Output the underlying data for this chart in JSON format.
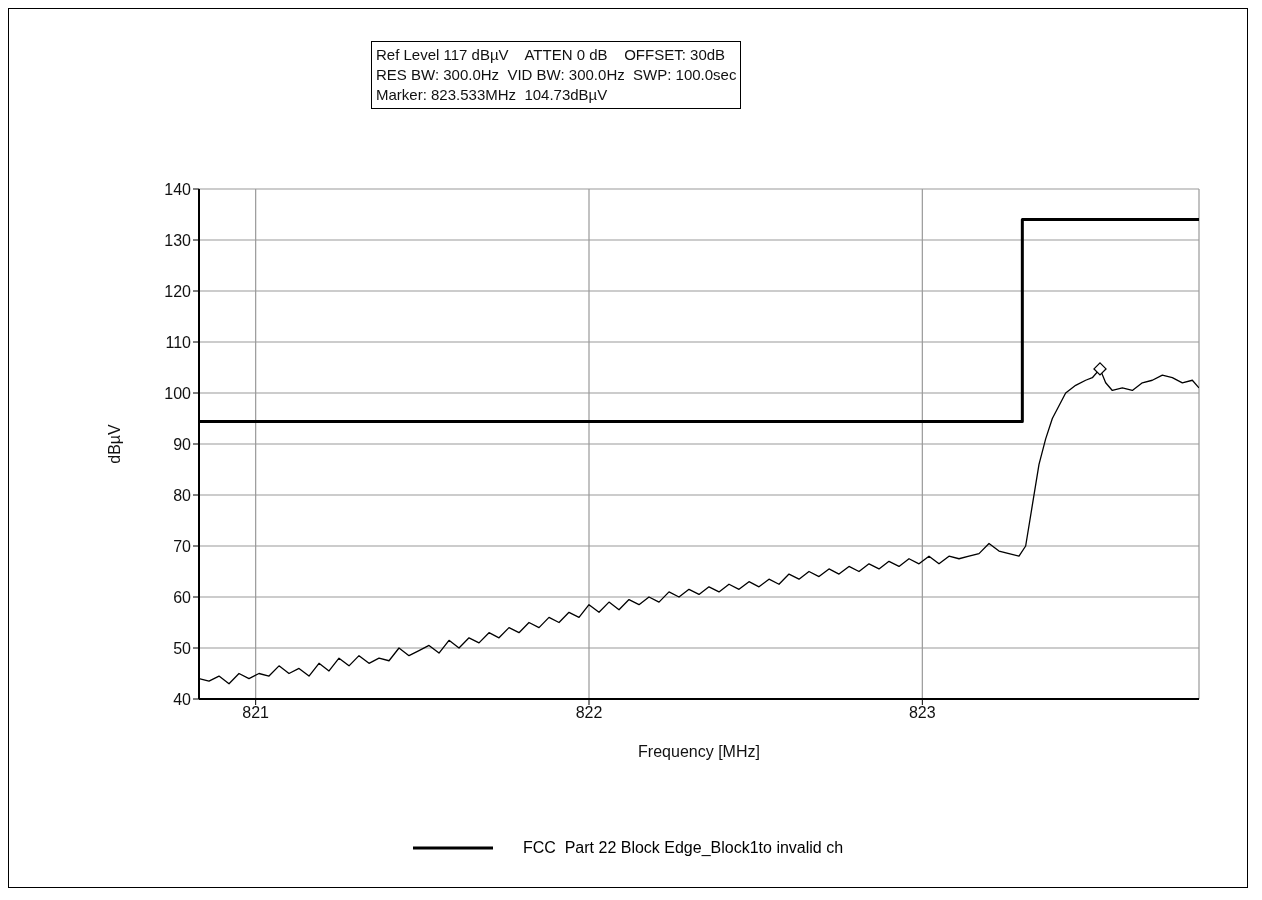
{
  "chart_data": {
    "type": "line",
    "annotations": [
      "Ref Level 117 dBµV    ATTEN 0 dB    OFFSET: 30dB",
      "RES BW: 300.0Hz  VID BW: 300.0Hz  SWP: 100.0sec",
      "Marker: 823.533MHz  104.73dBµV"
    ],
    "xlabel": "Frequency [MHz]",
    "ylabel": "dBµV",
    "xlim": [
      820.83,
      823.83
    ],
    "xticks": [
      821,
      822,
      823
    ],
    "ylim": [
      40,
      140
    ],
    "yticks": [
      40,
      50,
      60,
      70,
      80,
      90,
      100,
      110,
      120,
      130,
      140
    ],
    "grid": true,
    "legend": "bottom",
    "series": [
      {
        "color": "#000000",
        "x": [
          820.83,
          820.86,
          820.89,
          820.92,
          820.95,
          820.98,
          821.01,
          821.04,
          821.07,
          821.1,
          821.13,
          821.16,
          821.19,
          821.22,
          821.25,
          821.28,
          821.31,
          821.34,
          821.37,
          821.4,
          821.43,
          821.46,
          821.49,
          821.52,
          821.55,
          821.58,
          821.61,
          821.64,
          821.67,
          821.7,
          821.73,
          821.76,
          821.79,
          821.82,
          821.85,
          821.88,
          821.91,
          821.94,
          821.97,
          822.0,
          822.03,
          822.06,
          822.09,
          822.12,
          822.15,
          822.18,
          822.21,
          822.24,
          822.27,
          822.3,
          822.33,
          822.36,
          822.39,
          822.42,
          822.45,
          822.48,
          822.51,
          822.54,
          822.57,
          822.6,
          822.63,
          822.66,
          822.69,
          822.72,
          822.75,
          822.78,
          822.81,
          822.84,
          822.87,
          822.9,
          822.93,
          822.96,
          822.99,
          823.02,
          823.05,
          823.08,
          823.11,
          823.14,
          823.17,
          823.2,
          823.23,
          823.26,
          823.29,
          823.31,
          823.33,
          823.35,
          823.37,
          823.39,
          823.41,
          823.43,
          823.46,
          823.49,
          823.51,
          823.533,
          823.55,
          823.57,
          823.6,
          823.63,
          823.66,
          823.69,
          823.72,
          823.75,
          823.78,
          823.81,
          823.83
        ],
        "values": [
          44,
          43.5,
          44.5,
          43,
          45,
          44,
          45,
          44.5,
          46.5,
          45,
          46,
          44.5,
          47,
          45.5,
          48,
          46.5,
          48.5,
          47,
          48,
          47.5,
          50,
          48.5,
          49.5,
          50.5,
          49,
          51.5,
          50,
          52,
          51,
          53,
          52,
          54,
          53,
          55,
          54,
          56,
          55,
          57,
          56,
          58.5,
          57,
          59,
          57.5,
          59.5,
          58.5,
          60,
          59,
          61,
          60,
          61.5,
          60.5,
          62,
          61,
          62.5,
          61.5,
          63,
          62,
          63.5,
          62.5,
          64.5,
          63.5,
          65,
          64,
          65.5,
          64.5,
          66,
          65,
          66.5,
          65.5,
          67,
          66,
          67.5,
          66.5,
          68,
          66.5,
          68,
          67.5,
          68,
          68.5,
          70.5,
          69,
          68.5,
          68,
          70,
          78,
          86,
          91,
          95,
          97.5,
          100,
          101.5,
          102.5,
          103,
          104.73,
          102,
          100.5,
          101,
          100.5,
          102,
          102.5,
          103.5,
          103,
          102,
          102.5,
          101
        ]
      },
      {
        "type": "step",
        "name": "FCC  Part 22 Block Edge_Block1to invalid ch",
        "color": "#000000",
        "x": [
          820.83,
          823.3,
          823.83
        ],
        "values": [
          94.4,
          134,
          134
        ]
      },
      {
        "type": "scatter",
        "color": "#000000",
        "marker": "diamond",
        "x": [
          823.533
        ],
        "values": [
          104.73
        ]
      }
    ]
  }
}
